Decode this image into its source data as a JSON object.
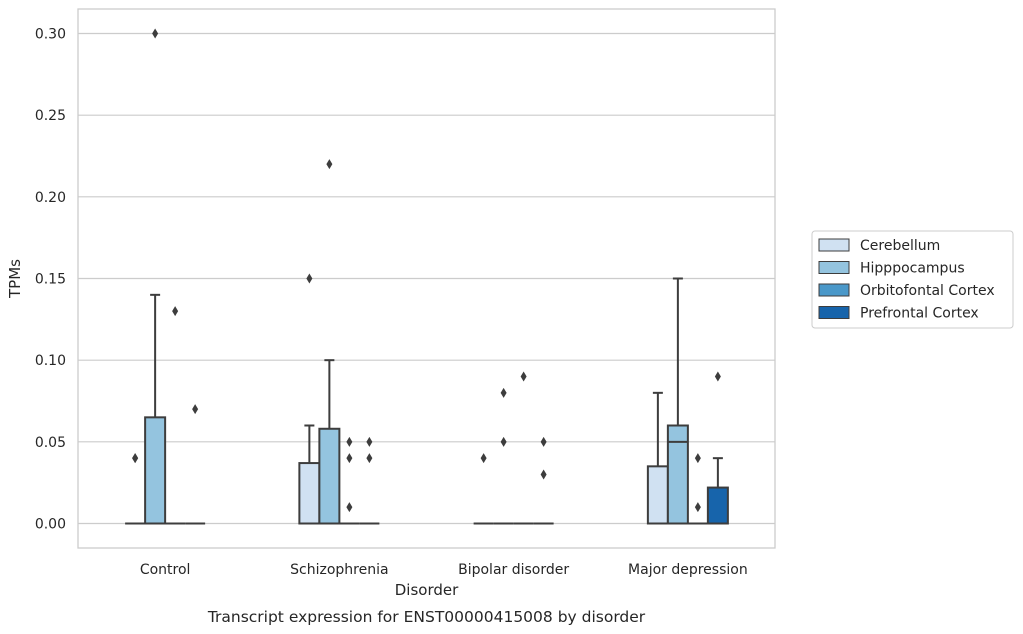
{
  "chart_data": {
    "type": "box",
    "caption": "Transcript expression for ENST00000415008 by disorder",
    "xlabel": "Disorder",
    "ylabel": "TPMs",
    "ylim": [
      -0.015,
      0.315
    ],
    "yticks": [
      "0.00",
      "0.05",
      "0.10",
      "0.15",
      "0.20",
      "0.25",
      "0.30"
    ],
    "ytick_values": [
      0,
      0.05,
      0.1,
      0.15,
      0.2,
      0.25,
      0.3
    ],
    "grid": "horizontal",
    "legend_position": "right",
    "categories": [
      "Control",
      "Schizophrenia",
      "Bipolar disorder",
      "Major depression"
    ],
    "series": [
      {
        "name": "Cerebellum",
        "color": "#d0e1f2",
        "boxes": [
          {
            "category": "Control",
            "q1": 0,
            "median": 0,
            "q3": 0,
            "whisker_low": 0,
            "whisker_high": 0,
            "outliers": [
              0.04,
              0.04
            ]
          },
          {
            "category": "Schizophrenia",
            "q1": 0,
            "median": 0,
            "q3": 0.037,
            "whisker_low": 0,
            "whisker_high": 0.06,
            "outliers": [
              0.15
            ]
          },
          {
            "category": "Bipolar disorder",
            "q1": 0,
            "median": 0,
            "q3": 0,
            "whisker_low": 0,
            "whisker_high": 0,
            "outliers": [
              0.04
            ]
          },
          {
            "category": "Major depression",
            "q1": 0,
            "median": 0,
            "q3": 0.035,
            "whisker_low": 0,
            "whisker_high": 0.08,
            "outliers": []
          }
        ]
      },
      {
        "name": "Hipppocampus",
        "color": "#94c4df",
        "boxes": [
          {
            "category": "Control",
            "q1": 0,
            "median": 0,
            "q3": 0.065,
            "whisker_low": 0,
            "whisker_high": 0.14,
            "outliers": [
              0.3
            ]
          },
          {
            "category": "Schizophrenia",
            "q1": 0,
            "median": 0,
            "q3": 0.058,
            "whisker_low": 0,
            "whisker_high": 0.1,
            "outliers": [
              0.22
            ]
          },
          {
            "category": "Bipolar disorder",
            "q1": 0,
            "median": 0,
            "q3": 0,
            "whisker_low": 0,
            "whisker_high": 0,
            "outliers": [
              0.05,
              0.08
            ]
          },
          {
            "category": "Major depression",
            "q1": 0,
            "median": 0.05,
            "q3": 0.06,
            "whisker_low": 0,
            "whisker_high": 0.15,
            "outliers": []
          }
        ]
      },
      {
        "name": "Orbitofontal Cortex",
        "color": "#4a98c9",
        "boxes": [
          {
            "category": "Control",
            "q1": 0,
            "median": 0,
            "q3": 0,
            "whisker_low": 0,
            "whisker_high": 0,
            "outliers": [
              0.13
            ]
          },
          {
            "category": "Schizophrenia",
            "q1": 0,
            "median": 0,
            "q3": 0,
            "whisker_low": 0,
            "whisker_high": 0,
            "outliers": [
              0.05,
              0.04,
              0.01
            ]
          },
          {
            "category": "Bipolar disorder",
            "q1": 0,
            "median": 0,
            "q3": 0,
            "whisker_low": 0,
            "whisker_high": 0,
            "outliers": [
              0.09
            ]
          },
          {
            "category": "Major depression",
            "q1": 0,
            "median": 0,
            "q3": 0,
            "whisker_low": 0,
            "whisker_high": 0,
            "outliers": [
              0.04,
              0.01
            ]
          }
        ]
      },
      {
        "name": "Prefrontal Cortex",
        "color": "#1764ab",
        "boxes": [
          {
            "category": "Control",
            "q1": 0,
            "median": 0,
            "q3": 0,
            "whisker_low": 0,
            "whisker_high": 0,
            "outliers": [
              0.07
            ]
          },
          {
            "category": "Schizophrenia",
            "q1": 0,
            "median": 0,
            "q3": 0,
            "whisker_low": 0,
            "whisker_high": 0,
            "outliers": [
              0.05,
              0.04
            ]
          },
          {
            "category": "Bipolar disorder",
            "q1": 0,
            "median": 0,
            "q3": 0,
            "whisker_low": 0,
            "whisker_high": 0,
            "outliers": [
              0.05,
              0.03
            ]
          },
          {
            "category": "Major depression",
            "q1": 0,
            "median": 0,
            "q3": 0.022,
            "whisker_low": 0,
            "whisker_high": 0.04,
            "outliers": [
              0.09
            ]
          }
        ]
      }
    ]
  }
}
